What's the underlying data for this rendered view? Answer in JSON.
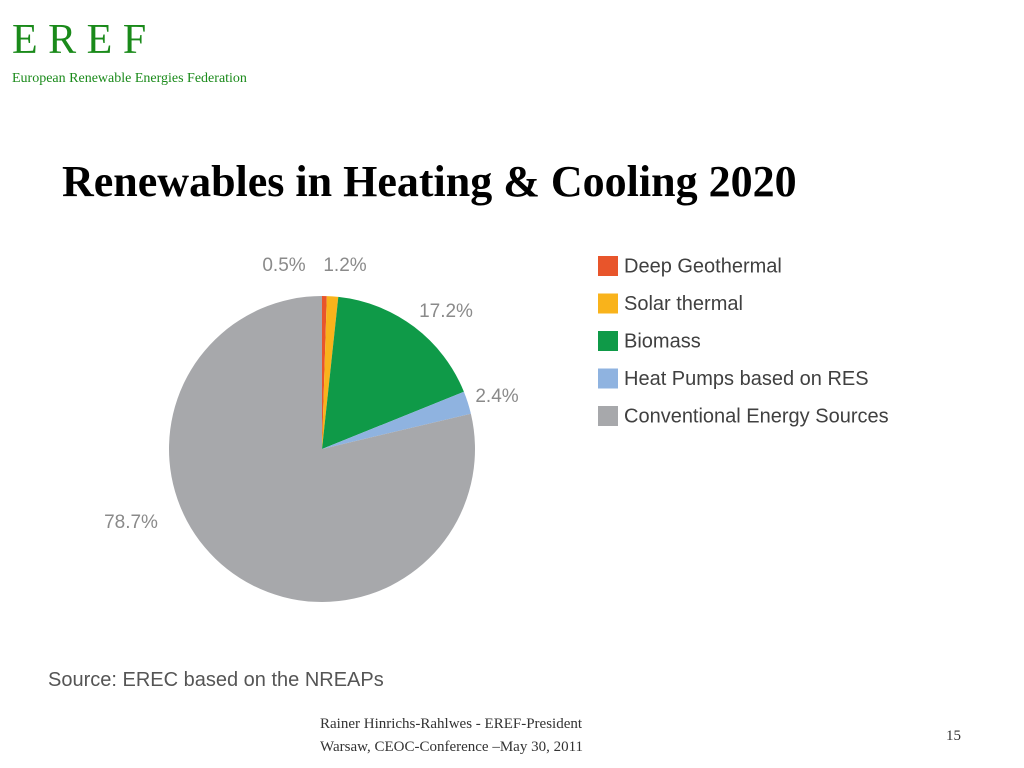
{
  "header": {
    "logo": "E R E F",
    "org": "European Renewable Energies Federation"
  },
  "slide": {
    "title": "Renewables in Heating & Cooling 2020"
  },
  "chart_data": {
    "type": "pie",
    "categories": [
      "Deep Geothermal",
      "Solar thermal",
      "Biomass",
      "Heat Pumps based on RES",
      "Conventional Energy Sources"
    ],
    "values": [
      0.5,
      1.2,
      17.2,
      2.4,
      78.7
    ],
    "value_labels": [
      "0.5%",
      "1.2%",
      "17.2%",
      "2.4%",
      "78.7%"
    ],
    "colors": [
      "#e8552b",
      "#f9b31b",
      "#0f9a48",
      "#8fb3e0",
      "#a7a8ab"
    ],
    "legend": "right",
    "source": "Source: EREC based on the NREAPs"
  },
  "footer": {
    "line1": "Rainer Hinrichs-Rahlwes  - EREF-President",
    "line2": "Warsaw, CEOC-Conference –May 30, 2011",
    "page": "15"
  }
}
